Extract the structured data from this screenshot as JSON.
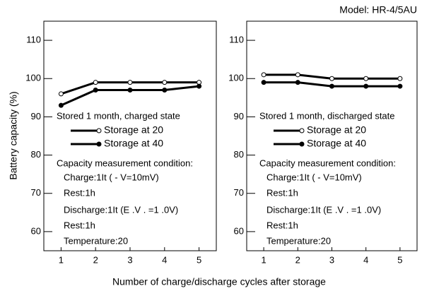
{
  "model": "Model: HR-4/5AU",
  "ylabel": "Battery capacity (%)",
  "xlabel": "Number of charge/discharge cycles after storage",
  "chart_data": [
    {
      "type": "line",
      "xlim": [
        0.5,
        5.5
      ],
      "xticks": [
        1,
        2,
        3,
        4,
        5
      ],
      "ylim": [
        55,
        115
      ],
      "yticks": [
        60,
        70,
        80,
        90,
        100,
        110
      ],
      "x": [
        1,
        2,
        3,
        4,
        5
      ],
      "series": [
        {
          "name": "Storage at 20",
          "color": "#000000",
          "marker": "open",
          "values": [
            96,
            99,
            99,
            99,
            99
          ]
        },
        {
          "name": "Storage at 40",
          "color": "#000000",
          "marker": "filled",
          "values": [
            93,
            97,
            97,
            97,
            98
          ]
        }
      ],
      "annotations": [
        "Stored 1 month, charged state",
        "Capacity measurement condition:",
        "Charge:1It ( -    V=10mV)",
        "Rest:1h",
        "Discharge:1It (E .V . =1 .0V)",
        "Rest:1h",
        "Temperature:20"
      ]
    },
    {
      "type": "line",
      "xlim": [
        0.5,
        5.5
      ],
      "xticks": [
        1,
        2,
        3,
        4,
        5
      ],
      "ylim": [
        55,
        115
      ],
      "yticks": [
        60,
        70,
        80,
        90,
        100,
        110
      ],
      "x": [
        1,
        2,
        3,
        4,
        5
      ],
      "series": [
        {
          "name": "Storage at 20",
          "color": "#000000",
          "marker": "open",
          "values": [
            101,
            101,
            100,
            100,
            100
          ]
        },
        {
          "name": "Storage at 40",
          "color": "#000000",
          "marker": "filled",
          "values": [
            99,
            99,
            98,
            98,
            98
          ]
        }
      ],
      "annotations": [
        "Stored 1 month, discharged state",
        "Capacity measurement condition:",
        "Charge:1It ( -    V=10mV)",
        "Rest:1h",
        "Discharge:1It (E .V . =1 .0V)",
        "Rest:1h",
        "Temperature:20"
      ]
    }
  ]
}
